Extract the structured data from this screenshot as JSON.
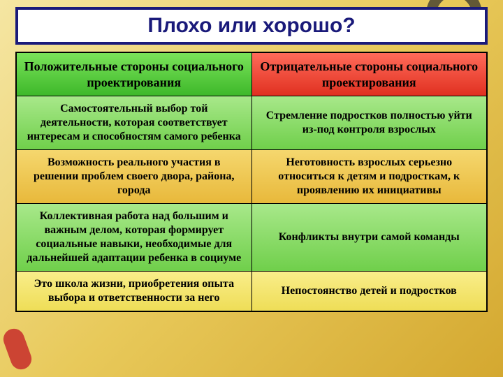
{
  "title": "Плохо или хорошо?",
  "headers": {
    "positive": "Положительные стороны социального проектирования",
    "negative": "Отрицательные стороны социального проектирования"
  },
  "rows": [
    {
      "class": "row-green",
      "positive": "Самостоятельный выбор той деятельности, которая соответствует интересам и способностям самого ребенка",
      "negative": "Стремление подростков полностью уйти из-под контроля взрослых"
    },
    {
      "class": "row-orange",
      "positive": "Возможность реального участия в решении проблем своего двора, района, города",
      "negative": "Неготовность взрослых серьезно относиться к детям и подросткам, к проявлению их инициативы"
    },
    {
      "class": "row-green",
      "positive": "Коллективная работа над большим и важным делом, которая формирует социальные навыки, необходимые для дальнейшей адаптации ребенка в социуме",
      "negative": "Конфликты внутри самой команды"
    },
    {
      "class": "row-yellow",
      "positive": "Это школа жизни, приобретения опыта выбора и ответственности за него",
      "negative": "Непостоянство детей и подростков"
    }
  ],
  "colors": {
    "title_border": "#1a1a7a",
    "title_text": "#1a1a7a",
    "title_bg": "#ffffff",
    "pos_header_bg": "#4dc93a",
    "neg_header_bg": "#e8402f",
    "border": "#000000"
  }
}
